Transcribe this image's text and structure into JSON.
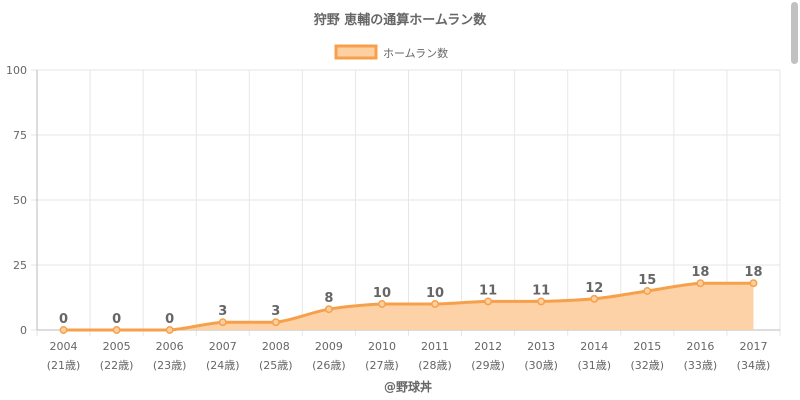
{
  "chart_data": {
    "type": "area",
    "title": "狩野 恵輔の通算ホームラン数",
    "legend": {
      "position": "top",
      "label": "ホームラン数"
    },
    "x": [
      "2004",
      "2005",
      "2006",
      "2007",
      "2008",
      "2009",
      "2010",
      "2011",
      "2012",
      "2013",
      "2014",
      "2015",
      "2016",
      "2017"
    ],
    "x_sublabels": [
      "(21歳)",
      "(22歳)",
      "(23歳)",
      "(24歳)",
      "(25歳)",
      "(26歳)",
      "(27歳)",
      "(28歳)",
      "(29歳)",
      "(30歳)",
      "(31歳)",
      "(32歳)",
      "(33歳)",
      "(34歳)"
    ],
    "series": [
      {
        "name": "ホームラン数",
        "values": [
          0,
          0,
          0,
          3,
          3,
          8,
          10,
          10,
          11,
          11,
          12,
          15,
          18,
          18
        ]
      }
    ],
    "ylim": [
      0,
      100
    ],
    "yticks": [
      0,
      25,
      50,
      75,
      100
    ],
    "grid": true,
    "footer": "@野球丼",
    "colors": {
      "line": "#f7a04b",
      "fill": "#fdd0a2",
      "grid": "#e6e6e6",
      "axis_text": "#666666",
      "label_text": "#666666"
    }
  }
}
